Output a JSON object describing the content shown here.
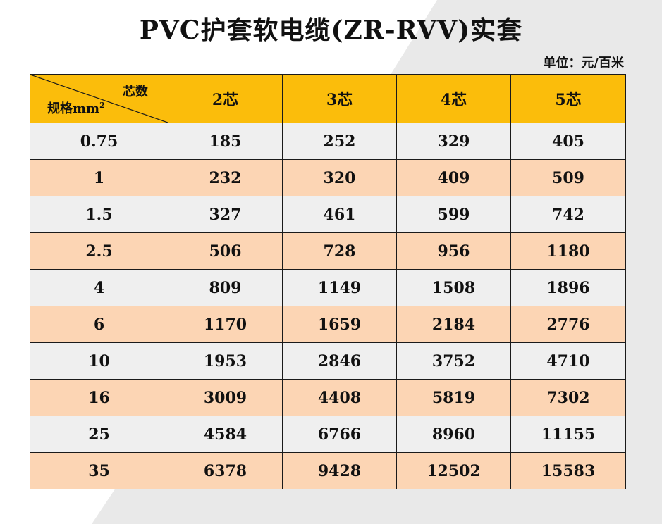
{
  "title": "PVC护套软电缆(ZR-RVV)实套",
  "unit_label": "单位：元/百米",
  "colors": {
    "header_bg": "#fbbd0b",
    "row_gray": "#efefef",
    "row_peach": "#fcd5b4",
    "border": "#1a1a1a"
  },
  "table": {
    "corner_top": "芯数",
    "corner_bottom": "规格mm",
    "corner_bottom_sup": "2",
    "columns": [
      "2芯",
      "3芯",
      "4芯",
      "5芯"
    ],
    "rows": [
      {
        "spec": "0.75",
        "values": [
          "185",
          "252",
          "329",
          "405"
        ]
      },
      {
        "spec": "1",
        "values": [
          "232",
          "320",
          "409",
          "509"
        ]
      },
      {
        "spec": "1.5",
        "values": [
          "327",
          "461",
          "599",
          "742"
        ]
      },
      {
        "spec": "2.5",
        "values": [
          "506",
          "728",
          "956",
          "1180"
        ]
      },
      {
        "spec": "4",
        "values": [
          "809",
          "1149",
          "1508",
          "1896"
        ]
      },
      {
        "spec": "6",
        "values": [
          "1170",
          "1659",
          "2184",
          "2776"
        ]
      },
      {
        "spec": "10",
        "values": [
          "1953",
          "2846",
          "3752",
          "4710"
        ]
      },
      {
        "spec": "16",
        "values": [
          "3009",
          "4408",
          "5819",
          "7302"
        ]
      },
      {
        "spec": "25",
        "values": [
          "4584",
          "6766",
          "8960",
          "11155"
        ]
      },
      {
        "spec": "35",
        "values": [
          "6378",
          "9428",
          "12502",
          "15583"
        ]
      }
    ]
  }
}
